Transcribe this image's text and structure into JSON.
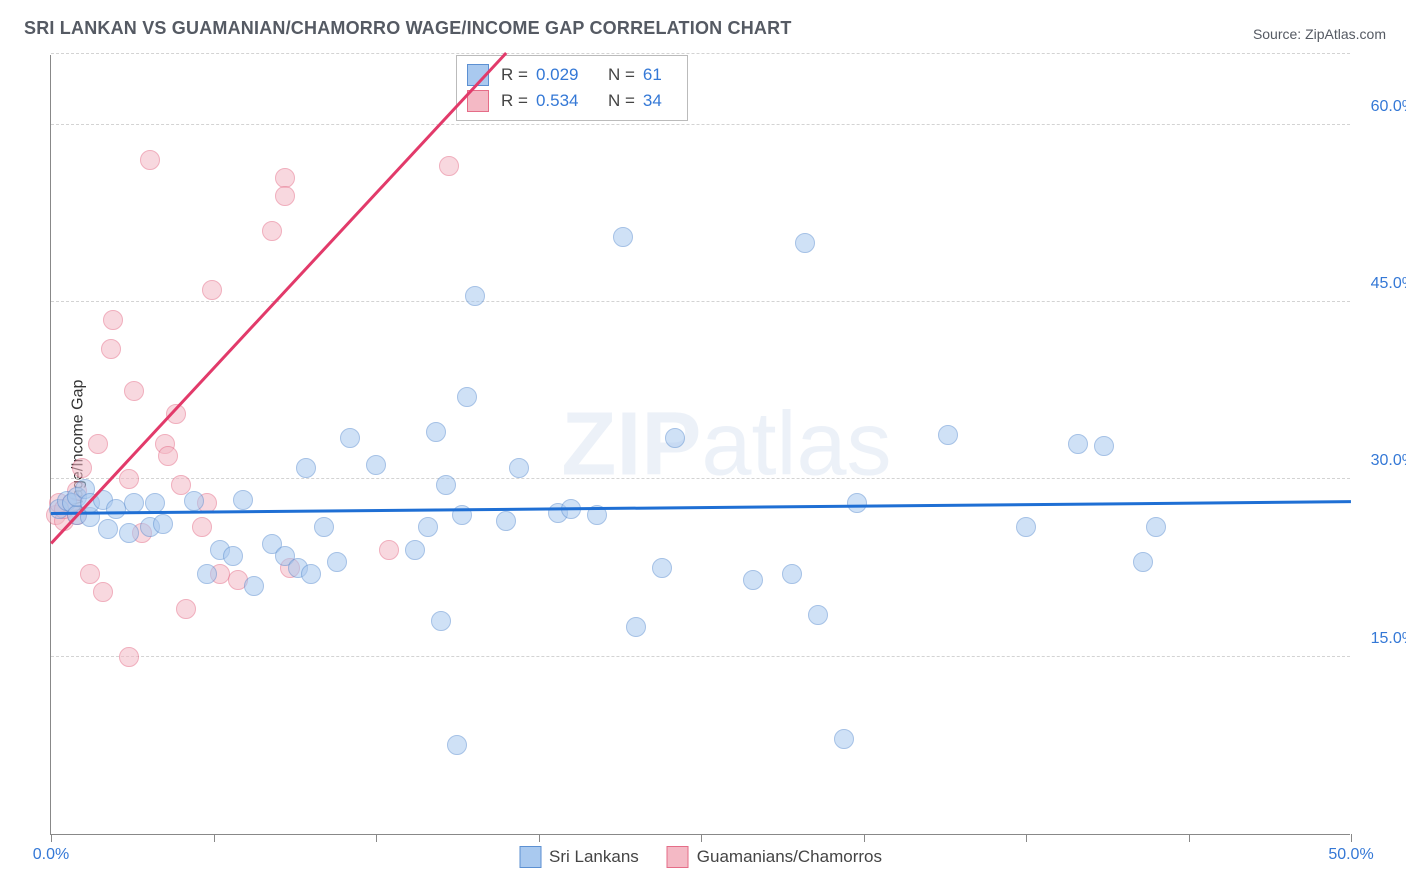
{
  "title": "SRI LANKAN VS GUAMANIAN/CHAMORRO WAGE/INCOME GAP CORRELATION CHART",
  "source_label": "Source: ZipAtlas.com",
  "y_axis_label": "Wage/Income Gap",
  "watermark": "ZIPatlas",
  "chart": {
    "type": "scatter",
    "background_color": "#ffffff",
    "grid_color": "#d3d3d3",
    "grid_style": "dashed",
    "axis_color": "#888888",
    "tick_label_color": "#3478d6",
    "tick_fontsize": 16,
    "title_fontsize": 18,
    "title_color": "#555a63",
    "xlim": [
      0,
      50
    ],
    "ylim": [
      0,
      66
    ],
    "marker_radius": 10,
    "marker_opacity": 0.55,
    "marker_stroke_width": 1.5,
    "y_gridlines": [
      15,
      30,
      45,
      60,
      66
    ],
    "y_tick_labels": [
      {
        "value": 15,
        "label": "15.0%"
      },
      {
        "value": 30,
        "label": "30.0%"
      },
      {
        "value": 45,
        "label": "45.0%"
      },
      {
        "value": 60,
        "label": "60.0%"
      }
    ],
    "x_ticks": [
      0,
      6.25,
      12.5,
      18.75,
      25,
      31.25,
      37.5,
      43.75,
      50
    ],
    "x_tick_labels": [
      {
        "value": 0,
        "label": "0.0%"
      },
      {
        "value": 50,
        "label": "50.0%"
      }
    ],
    "series": [
      {
        "name": "Sri Lankans",
        "fill_color": "#a9c9ef",
        "stroke_color": "#5c90d2",
        "trend_color": "#1f6fd4",
        "R": "0.029",
        "N": "61",
        "trendline": {
          "x1": 0,
          "y1": 27.0,
          "x2": 50,
          "y2": 28.0
        },
        "points": [
          [
            0.3,
            27.5
          ],
          [
            0.6,
            28.2
          ],
          [
            0.8,
            28.0
          ],
          [
            1.0,
            27.0
          ],
          [
            1.0,
            28.5
          ],
          [
            1.3,
            29.2
          ],
          [
            1.5,
            26.8
          ],
          [
            1.5,
            28.0
          ],
          [
            2.0,
            28.3
          ],
          [
            2.2,
            25.8
          ],
          [
            2.5,
            27.5
          ],
          [
            3.0,
            25.5
          ],
          [
            3.2,
            28.0
          ],
          [
            3.8,
            26.0
          ],
          [
            4.0,
            28.0
          ],
          [
            4.3,
            26.2
          ],
          [
            5.5,
            28.2
          ],
          [
            6.0,
            22.0
          ],
          [
            6.5,
            24.0
          ],
          [
            7.0,
            23.5
          ],
          [
            7.4,
            28.3
          ],
          [
            7.8,
            21.0
          ],
          [
            8.5,
            24.5
          ],
          [
            9.0,
            23.5
          ],
          [
            9.5,
            22.5
          ],
          [
            9.8,
            31.0
          ],
          [
            10.0,
            22.0
          ],
          [
            10.5,
            26.0
          ],
          [
            11.0,
            23.0
          ],
          [
            11.5,
            33.5
          ],
          [
            12.5,
            31.2
          ],
          [
            14.0,
            24.0
          ],
          [
            14.5,
            26.0
          ],
          [
            14.8,
            34.0
          ],
          [
            15.0,
            18.0
          ],
          [
            15.2,
            29.5
          ],
          [
            15.6,
            7.5
          ],
          [
            15.8,
            27.0
          ],
          [
            16.0,
            37.0
          ],
          [
            16.3,
            45.5
          ],
          [
            17.5,
            26.5
          ],
          [
            18.0,
            31.0
          ],
          [
            19.5,
            27.2
          ],
          [
            20.0,
            27.5
          ],
          [
            21.0,
            27.0
          ],
          [
            22.0,
            50.5
          ],
          [
            22.5,
            17.5
          ],
          [
            23.5,
            22.5
          ],
          [
            24.0,
            33.5
          ],
          [
            27.0,
            21.5
          ],
          [
            28.5,
            22.0
          ],
          [
            29.0,
            50.0
          ],
          [
            29.5,
            18.5
          ],
          [
            30.5,
            8.0
          ],
          [
            31.0,
            28.0
          ],
          [
            34.5,
            33.8
          ],
          [
            37.5,
            26.0
          ],
          [
            39.5,
            33.0
          ],
          [
            40.5,
            32.8
          ],
          [
            42.0,
            23.0
          ],
          [
            42.5,
            26.0
          ]
        ]
      },
      {
        "name": "Guamanians/Chamorros",
        "fill_color": "#f4b9c5",
        "stroke_color": "#e56d88",
        "trend_color": "#e23a6a",
        "R": "0.534",
        "N": "34",
        "trendline": {
          "x1": 0,
          "y1": 24.5,
          "x2": 17.5,
          "y2": 66.0
        },
        "points": [
          [
            0.2,
            27.0
          ],
          [
            0.3,
            28.0
          ],
          [
            0.5,
            26.5
          ],
          [
            0.5,
            27.5
          ],
          [
            0.8,
            28.0
          ],
          [
            1.0,
            29.0
          ],
          [
            1.0,
            27.0
          ],
          [
            1.2,
            31.0
          ],
          [
            1.5,
            22.0
          ],
          [
            1.8,
            33.0
          ],
          [
            2.0,
            20.5
          ],
          [
            2.3,
            41.0
          ],
          [
            2.4,
            43.5
          ],
          [
            3.0,
            15.0
          ],
          [
            3.0,
            30.0
          ],
          [
            3.2,
            37.5
          ],
          [
            3.5,
            25.5
          ],
          [
            3.8,
            57.0
          ],
          [
            4.4,
            33.0
          ],
          [
            4.5,
            32.0
          ],
          [
            4.8,
            35.5
          ],
          [
            5.0,
            29.5
          ],
          [
            5.2,
            19.0
          ],
          [
            5.8,
            26.0
          ],
          [
            6.0,
            28.0
          ],
          [
            6.2,
            46.0
          ],
          [
            6.5,
            22.0
          ],
          [
            7.2,
            21.5
          ],
          [
            8.5,
            51.0
          ],
          [
            9.0,
            55.5
          ],
          [
            9.0,
            54.0
          ],
          [
            9.2,
            22.5
          ],
          [
            13.0,
            24.0
          ],
          [
            15.3,
            56.5
          ]
        ]
      }
    ]
  },
  "legend_bottom": [
    {
      "key": 0,
      "label": "Sri Lankans"
    },
    {
      "key": 1,
      "label": "Guamanians/Chamorros"
    }
  ]
}
